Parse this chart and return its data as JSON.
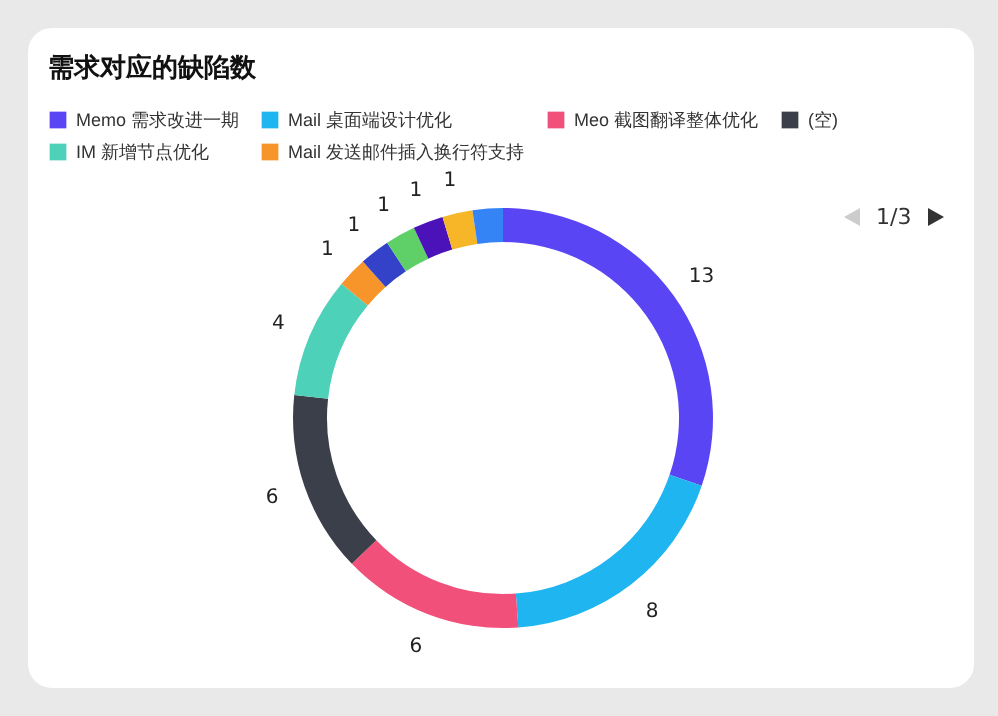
{
  "chart_data": {
    "type": "donut",
    "title": "需求对应的缺陷数",
    "categories": [
      "Memo 需求改进一期",
      "Mail 桌面端设计优化",
      "Meo 截图翻译整体优化",
      "(空)",
      "IM 新增节点优化",
      "Mail 发送邮件插入换行符支持",
      null,
      null,
      null,
      null,
      null
    ],
    "values": [
      13,
      8,
      6,
      6,
      4,
      1,
      1,
      1,
      1,
      1,
      1
    ],
    "colors": [
      "#5a45f5",
      "#1fb5f0",
      "#f0507a",
      "#3b3f4a",
      "#4ed1b9",
      "#f7952a",
      "#3442c9",
      "#5fd068",
      "#4a12b8",
      "#f7b528",
      "#3484f5"
    ],
    "value_labels": [
      "13",
      "8",
      "6",
      "6",
      "4",
      "1",
      "1",
      "1",
      "1",
      "1",
      null
    ],
    "legend": "top",
    "annotations": [
      "1/3"
    ]
  }
}
